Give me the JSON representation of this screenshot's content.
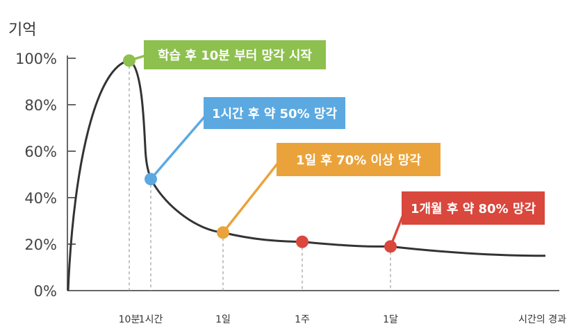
{
  "chart_data": {
    "type": "line",
    "ylabel": "기억",
    "xlabel": "시간의 경과",
    "ylim": [
      0,
      100
    ],
    "yticks": [
      "0%",
      "20%",
      "40%",
      "60%",
      "80%",
      "100%"
    ],
    "x_categories": [
      "10분",
      "1시간",
      "1일",
      "1주",
      "1달"
    ],
    "series": [
      {
        "points": [
          {
            "x": "0",
            "y": 0
          },
          {
            "x": "10분",
            "y": 99
          },
          {
            "x": "1시간",
            "y": 48
          },
          {
            "x": "1일",
            "y": 25
          },
          {
            "x": "1주",
            "y": 21
          },
          {
            "x": "1달",
            "y": 19
          },
          {
            "x": "시간의 경과",
            "y": 15
          }
        ]
      }
    ],
    "annotations": [
      {
        "text": "학습 후 10분 부터 망각 시작",
        "x": "10분",
        "y": 99,
        "color": "#8dc04e"
      },
      {
        "text": "1시간 후 약 50% 망각",
        "x": "1시간",
        "y": 48,
        "color": "#5ba9e0"
      },
      {
        "text": "1일 후 70% 이상 망각",
        "x": "1일",
        "y": 25,
        "color": "#eaa33b"
      },
      {
        "text": "1개월 후 약 80% 망각",
        "x": "1달",
        "y": 19,
        "color": "#d9473d"
      }
    ],
    "markers": [
      {
        "x": "1주",
        "y": 21,
        "color": "#d9473d"
      }
    ]
  }
}
